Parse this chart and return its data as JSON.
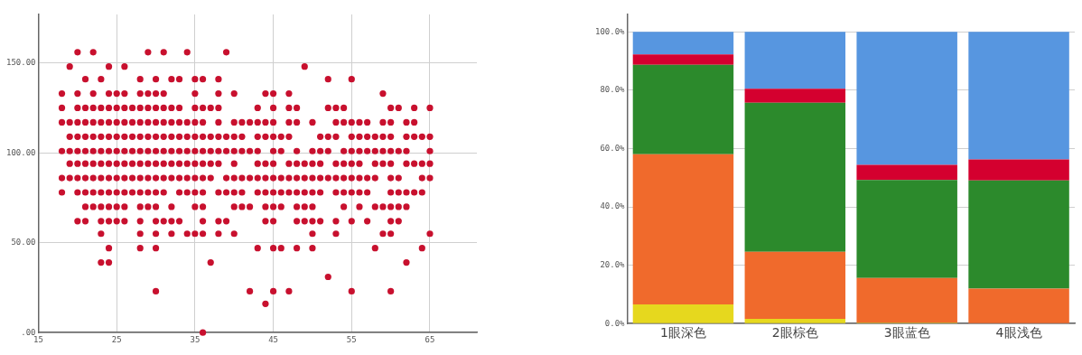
{
  "chart_data": [
    {
      "type": "scatter",
      "marker": "circle",
      "grid": true,
      "legend": false,
      "xlim": [
        15,
        71
      ],
      "xticks": [
        15,
        25,
        35,
        45,
        55,
        65
      ],
      "ylim": [
        0,
        177
      ],
      "yticks": [
        {
          "value": 0,
          "label": ".00"
        },
        {
          "value": 50,
          "label": "50.00"
        },
        {
          "value": 100,
          "label": "100.00"
        },
        {
          "value": 150,
          "label": "150.00"
        }
      ],
      "series": [
        {
          "color": "#c8102e",
          "x": [
            20,
            22,
            29,
            31,
            34,
            39,
            19,
            24,
            26,
            49,
            21,
            23,
            28,
            30,
            32,
            33,
            35,
            36,
            38,
            52,
            55,
            18,
            20,
            22,
            24,
            25,
            26,
            28,
            29,
            30,
            31,
            35,
            38,
            40,
            44,
            45,
            47,
            59,
            18,
            20,
            21,
            22,
            23,
            24,
            25,
            26,
            27,
            28,
            29,
            30,
            31,
            32,
            33,
            35,
            36,
            37,
            38,
            43,
            45,
            47,
            48,
            52,
            53,
            54,
            60,
            61,
            63,
            65,
            18,
            19,
            20,
            21,
            22,
            23,
            24,
            25,
            26,
            27,
            28,
            29,
            30,
            31,
            32,
            33,
            34,
            35,
            36,
            38,
            40,
            41,
            42,
            43,
            44,
            45,
            47,
            48,
            50,
            53,
            54,
            55,
            56,
            57,
            59,
            60,
            62,
            63,
            19,
            20,
            21,
            22,
            23,
            24,
            25,
            26,
            27,
            28,
            29,
            30,
            31,
            32,
            33,
            34,
            35,
            36,
            37,
            38,
            39,
            40,
            41,
            43,
            44,
            45,
            46,
            47,
            51,
            52,
            53,
            55,
            56,
            57,
            58,
            59,
            60,
            62,
            63,
            64,
            65,
            18,
            19,
            20,
            21,
            22,
            23,
            24,
            25,
            26,
            27,
            28,
            29,
            30,
            31,
            32,
            33,
            34,
            35,
            36,
            37,
            38,
            39,
            40,
            41,
            42,
            43,
            45,
            46,
            48,
            50,
            51,
            52,
            54,
            55,
            56,
            57,
            58,
            59,
            60,
            61,
            62,
            65,
            19,
            20,
            21,
            22,
            23,
            24,
            25,
            26,
            27,
            28,
            29,
            30,
            31,
            32,
            33,
            34,
            35,
            36,
            37,
            38,
            40,
            43,
            44,
            45,
            47,
            48,
            49,
            50,
            51,
            53,
            54,
            55,
            56,
            58,
            59,
            60,
            62,
            63,
            64,
            65,
            18,
            19,
            20,
            21,
            22,
            23,
            24,
            25,
            26,
            27,
            28,
            29,
            30,
            31,
            32,
            33,
            34,
            35,
            36,
            37,
            39,
            40,
            41,
            42,
            43,
            44,
            45,
            46,
            47,
            48,
            49,
            50,
            51,
            52,
            53,
            54,
            55,
            56,
            57,
            58,
            60,
            61,
            64,
            65,
            18,
            20,
            21,
            22,
            23,
            24,
            25,
            26,
            27,
            28,
            29,
            30,
            31,
            33,
            34,
            35,
            36,
            38,
            39,
            40,
            41,
            43,
            44,
            45,
            46,
            47,
            48,
            49,
            50,
            51,
            53,
            54,
            55,
            56,
            57,
            60,
            61,
            62,
            63,
            64,
            21,
            22,
            23,
            24,
            25,
            26,
            28,
            29,
            30,
            32,
            35,
            36,
            40,
            41,
            42,
            44,
            45,
            46,
            48,
            49,
            50,
            54,
            56,
            58,
            59,
            60,
            61,
            62,
            20,
            21,
            23,
            24,
            25,
            26,
            28,
            30,
            31,
            32,
            33,
            36,
            38,
            39,
            44,
            45,
            48,
            49,
            50,
            51,
            53,
            55,
            57,
            60,
            61,
            23,
            28,
            30,
            32,
            34,
            35,
            36,
            38,
            40,
            50,
            53,
            59,
            60,
            65,
            24,
            28,
            30,
            43,
            45,
            46,
            48,
            50,
            58,
            64,
            23,
            24,
            37,
            62,
            52,
            30,
            42,
            45,
            47,
            55,
            60,
            44,
            36
          ],
          "values": [
            156,
            156,
            156,
            156,
            156,
            156,
            148,
            148,
            148,
            148,
            141,
            141,
            141,
            141,
            141,
            141,
            141,
            141,
            141,
            141,
            141,
            133,
            133,
            133,
            133,
            133,
            133,
            133,
            133,
            133,
            133,
            133,
            133,
            133,
            133,
            133,
            133,
            133,
            125,
            125,
            125,
            125,
            125,
            125,
            125,
            125,
            125,
            125,
            125,
            125,
            125,
            125,
            125,
            125,
            125,
            125,
            125,
            125,
            125,
            125,
            125,
            125,
            125,
            125,
            125,
            125,
            125,
            125,
            117,
            117,
            117,
            117,
            117,
            117,
            117,
            117,
            117,
            117,
            117,
            117,
            117,
            117,
            117,
            117,
            117,
            117,
            117,
            117,
            117,
            117,
            117,
            117,
            117,
            117,
            117,
            117,
            117,
            117,
            117,
            117,
            117,
            117,
            117,
            117,
            117,
            117,
            109,
            109,
            109,
            109,
            109,
            109,
            109,
            109,
            109,
            109,
            109,
            109,
            109,
            109,
            109,
            109,
            109,
            109,
            109,
            109,
            109,
            109,
            109,
            109,
            109,
            109,
            109,
            109,
            109,
            109,
            109,
            109,
            109,
            109,
            109,
            109,
            109,
            109,
            109,
            109,
            109,
            101,
            101,
            101,
            101,
            101,
            101,
            101,
            101,
            101,
            101,
            101,
            101,
            101,
            101,
            101,
            101,
            101,
            101,
            101,
            101,
            101,
            101,
            101,
            101,
            101,
            101,
            101,
            101,
            101,
            101,
            101,
            101,
            101,
            101,
            101,
            101,
            101,
            101,
            101,
            101,
            101,
            101,
            94,
            94,
            94,
            94,
            94,
            94,
            94,
            94,
            94,
            94,
            94,
            94,
            94,
            94,
            94,
            94,
            94,
            94,
            94,
            94,
            94,
            94,
            94,
            94,
            94,
            94,
            94,
            94,
            94,
            94,
            94,
            94,
            94,
            94,
            94,
            94,
            94,
            94,
            94,
            94,
            86,
            86,
            86,
            86,
            86,
            86,
            86,
            86,
            86,
            86,
            86,
            86,
            86,
            86,
            86,
            86,
            86,
            86,
            86,
            86,
            86,
            86,
            86,
            86,
            86,
            86,
            86,
            86,
            86,
            86,
            86,
            86,
            86,
            86,
            86,
            86,
            86,
            86,
            86,
            86,
            86,
            86,
            86,
            86,
            78,
            78,
            78,
            78,
            78,
            78,
            78,
            78,
            78,
            78,
            78,
            78,
            78,
            78,
            78,
            78,
            78,
            78,
            78,
            78,
            78,
            78,
            78,
            78,
            78,
            78,
            78,
            78,
            78,
            78,
            78,
            78,
            78,
            78,
            78,
            78,
            78,
            78,
            78,
            78,
            70,
            70,
            70,
            70,
            70,
            70,
            70,
            70,
            70,
            70,
            70,
            70,
            70,
            70,
            70,
            70,
            70,
            70,
            70,
            70,
            70,
            70,
            70,
            70,
            70,
            70,
            70,
            70,
            62,
            62,
            62,
            62,
            62,
            62,
            62,
            62,
            62,
            62,
            62,
            62,
            62,
            62,
            62,
            62,
            62,
            62,
            62,
            62,
            62,
            62,
            62,
            62,
            62,
            55,
            55,
            55,
            55,
            55,
            55,
            55,
            55,
            55,
            55,
            55,
            55,
            55,
            55,
            47,
            47,
            47,
            47,
            47,
            47,
            47,
            47,
            47,
            47,
            39,
            39,
            39,
            39,
            31,
            23,
            23,
            23,
            23,
            23,
            23,
            16,
            0
          ]
        }
      ]
    },
    {
      "type": "bar",
      "stacked": true,
      "grid": "y",
      "legend": false,
      "categories": [
        "1眼深色",
        "2眼棕色",
        "3眼蓝色",
        "4眼浅色"
      ],
      "ylim": [
        0,
        106
      ],
      "yticks": [
        {
          "value": 0,
          "label": "0.0%"
        },
        {
          "value": 20,
          "label": "20.0%"
        },
        {
          "value": 40,
          "label": "40.0%"
        },
        {
          "value": 60,
          "label": "60.0%"
        },
        {
          "value": 80,
          "label": "80.0%"
        },
        {
          "value": 100,
          "label": "100.0%"
        }
      ],
      "series": [
        {
          "color": "#e6d81e",
          "values": [
            6.6,
            1.6,
            0.3,
            0
          ]
        },
        {
          "color": "#f06a2c",
          "values": [
            51.5,
            23,
            15.3,
            12
          ]
        },
        {
          "color": "#2c8a2c",
          "values": [
            30.6,
            51.1,
            33.6,
            37.1
          ]
        },
        {
          "color": "#d4002f",
          "values": [
            3.6,
            4.8,
            5.2,
            7.2
          ]
        },
        {
          "color": "#5796e0",
          "values": [
            7.7,
            19.5,
            45.6,
            43.7
          ]
        }
      ]
    }
  ]
}
